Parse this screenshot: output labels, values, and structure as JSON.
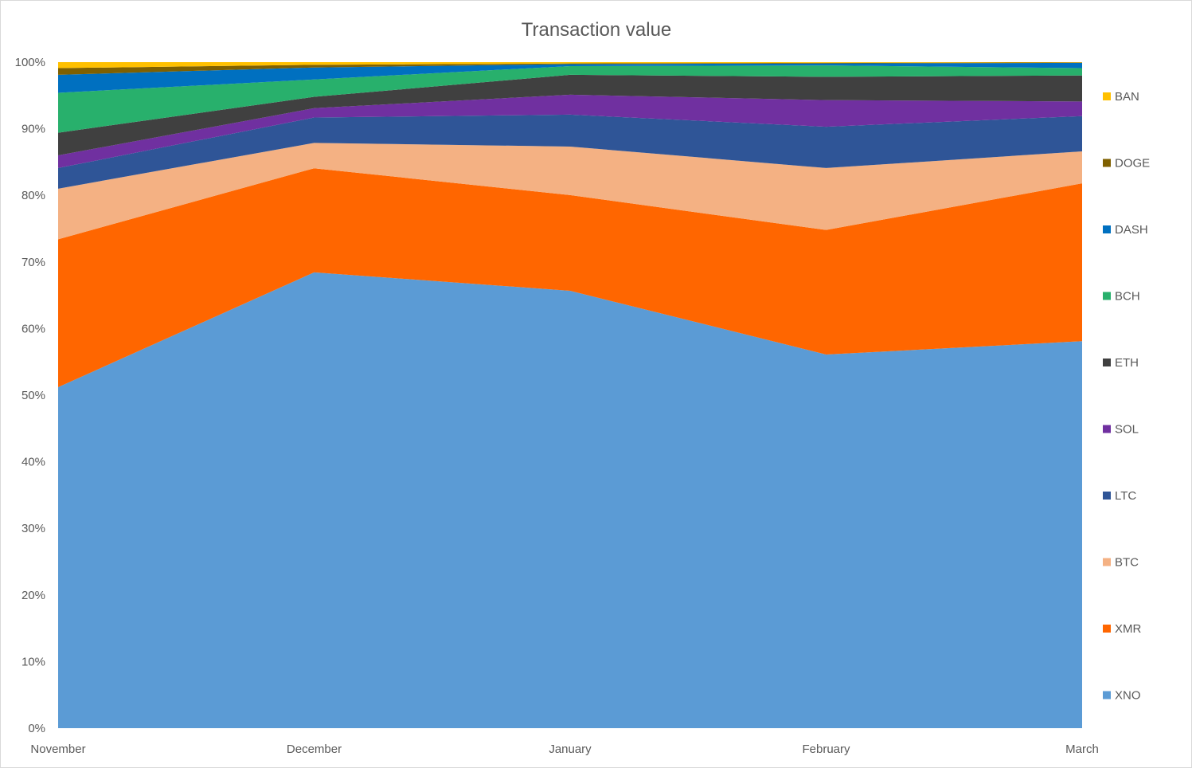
{
  "chart_data": {
    "type": "area",
    "stacking": "percent",
    "title": "Transaction value",
    "categories": [
      "November",
      "December",
      "January",
      "February",
      "March"
    ],
    "ylim": [
      0,
      100
    ],
    "y_ticks": [
      "0%",
      "10%",
      "20%",
      "30%",
      "40%",
      "50%",
      "60%",
      "70%",
      "80%",
      "90%",
      "100%"
    ],
    "grid": false,
    "legend_position": "right",
    "series": [
      {
        "name": "XNO",
        "color": "#5B9BD5",
        "values": [
          51.2,
          68.3,
          65.8,
          56.1,
          58.1
        ]
      },
      {
        "name": "XMR",
        "color": "#FF6600",
        "values": [
          22.2,
          15.6,
          14.4,
          18.7,
          23.7
        ]
      },
      {
        "name": "BTC",
        "color": "#F4B183",
        "values": [
          7.6,
          3.8,
          7.3,
          9.3,
          4.8
        ]
      },
      {
        "name": "LTC",
        "color": "#2F5597",
        "values": [
          3.1,
          3.8,
          4.8,
          6.2,
          5.3
        ]
      },
      {
        "name": "SOL",
        "color": "#7030A0",
        "values": [
          1.9,
          1.4,
          3.0,
          4.0,
          2.2
        ]
      },
      {
        "name": "ETH",
        "color": "#404040",
        "values": [
          3.4,
          1.7,
          3.0,
          3.5,
          3.9
        ]
      },
      {
        "name": "BCH",
        "color": "#28B06C",
        "values": [
          6.0,
          2.6,
          1.3,
          1.7,
          1.1
        ]
      },
      {
        "name": "DASH",
        "color": "#0070C0",
        "values": [
          2.7,
          1.8,
          0.3,
          0.3,
          0.8
        ]
      },
      {
        "name": "DOGE",
        "color": "#7F6000",
        "values": [
          1.0,
          0.4,
          0.1,
          0.1,
          0.05
        ]
      },
      {
        "name": "BAN",
        "color": "#FFC000",
        "values": [
          0.9,
          0.4,
          0.2,
          0.1,
          0.05
        ]
      }
    ]
  }
}
